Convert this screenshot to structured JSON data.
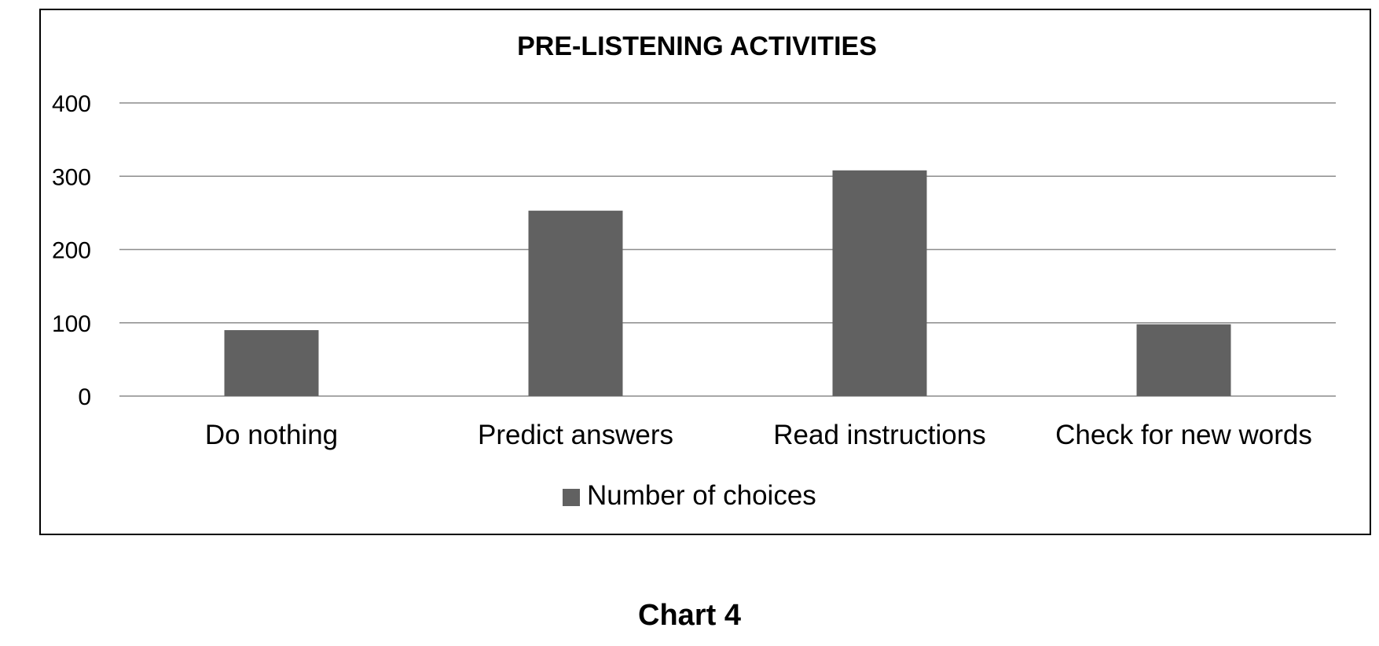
{
  "chart_data": {
    "type": "bar",
    "title": "PRE-LISTENING ACTIVITIES",
    "categories": [
      "Do nothing",
      "Predict answers",
      "Read instructions",
      "Check for new words"
    ],
    "series": [
      {
        "name": "Number of choices",
        "values": [
          90,
          253,
          308,
          98
        ]
      }
    ],
    "ylim": [
      0,
      400
    ],
    "yticks": [
      0,
      100,
      200,
      300,
      400
    ],
    "grid": true,
    "legend": "bottom",
    "bar_color": "#616161"
  },
  "caption": "Chart 4"
}
